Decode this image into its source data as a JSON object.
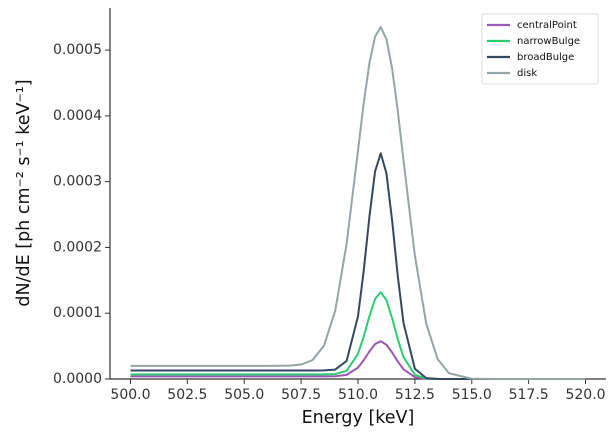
{
  "chart_data": {
    "type": "line",
    "xlabel": "Energy [keV]",
    "ylabel": "dN/dE [ph cm⁻² s⁻¹ keV⁻¹]",
    "x": [
      500,
      502,
      504,
      506,
      507,
      507.5,
      508,
      508.5,
      509,
      509.5,
      510,
      510.25,
      510.5,
      510.75,
      511,
      511.25,
      511.5,
      511.75,
      512,
      512.5,
      513,
      513.5,
      514,
      515,
      516,
      518,
      520
    ],
    "series": [
      {
        "name": "centralPoint",
        "color": "#9b59b6",
        "values": [
          4e-06,
          4e-06,
          4e-06,
          4e-06,
          4e-06,
          4e-06,
          4e-06,
          4e-06,
          4.2e-06,
          6.3e-06,
          1.73e-05,
          2.85e-05,
          4.18e-05,
          5.31e-05,
          5.75e-05,
          5.21e-05,
          4.03e-05,
          2.65e-05,
          1.48e-05,
          2.8e-06,
          2e-07,
          0,
          0,
          0,
          0,
          0,
          0
        ]
      },
      {
        "name": "narrowBulge",
        "color": "#2ecc71",
        "values": [
          7e-06,
          7e-06,
          7e-06,
          7e-06,
          7e-06,
          7e-06,
          7e-06,
          7e-06,
          7.5e-06,
          1.25e-05,
          3.82e-05,
          6.43e-05,
          9.53e-05,
          0.0001216,
          0.000132,
          0.0001196,
          9.23e-05,
          6.03e-05,
          3.32e-05,
          6.5e-06,
          5e-07,
          0,
          0,
          0,
          0,
          0,
          0
        ]
      },
      {
        "name": "broadBulge",
        "color": "#34495e",
        "values": [
          1.3e-05,
          1.3e-05,
          1.3e-05,
          1.3e-05,
          1.3e-05,
          1.3e-05,
          1.3e-05,
          1.31e-05,
          1.43e-05,
          2.75e-05,
          9.53e-05,
          0.0001641,
          0.0002462,
          0.0003156,
          0.000343,
          0.0003126,
          0.0002407,
          0.0001561,
          8.53e-05,
          1.55e-05,
          1.3e-06,
          1e-07,
          0,
          0,
          0,
          0,
          0
        ]
      },
      {
        "name": "disk",
        "color": "#95a5a6",
        "values": [
          2e-05,
          2e-05,
          2e-05,
          2e-05,
          2.04e-05,
          2.2e-05,
          2.87e-05,
          5.03e-05,
          0.0001039,
          0.0002056,
          0.0003472,
          0.000419,
          0.0004798,
          0.0005206,
          0.000535,
          0.0005166,
          0.0004718,
          0.000407,
          0.0003322,
          0.0001876,
          8.39e-05,
          3.03e-05,
          8.7e-06,
          4e-07,
          0,
          0,
          0
        ]
      }
    ],
    "xlim": [
      499.1,
      520.9
    ],
    "ylim": [
      0,
      0.000564
    ],
    "xticks": [
      {
        "value": 500,
        "label": "500.0"
      },
      {
        "value": 502.5,
        "label": "502.5"
      },
      {
        "value": 505,
        "label": "505.0"
      },
      {
        "value": 507.5,
        "label": "507.5"
      },
      {
        "value": 510,
        "label": "510.0"
      },
      {
        "value": 512.5,
        "label": "512.5"
      },
      {
        "value": 515,
        "label": "515.0"
      },
      {
        "value": 517.5,
        "label": "517.5"
      },
      {
        "value": 520,
        "label": "520.0"
      }
    ],
    "yticks": [
      {
        "value": 0,
        "label": "0.0000"
      },
      {
        "value": 0.0001,
        "label": "0.0001"
      },
      {
        "value": 0.0002,
        "label": "0.0002"
      },
      {
        "value": 0.0003,
        "label": "0.0003"
      },
      {
        "value": 0.0004,
        "label": "0.0004"
      },
      {
        "value": 0.0005,
        "label": "0.0005"
      }
    ],
    "legend": "upper right",
    "grid": false
  }
}
